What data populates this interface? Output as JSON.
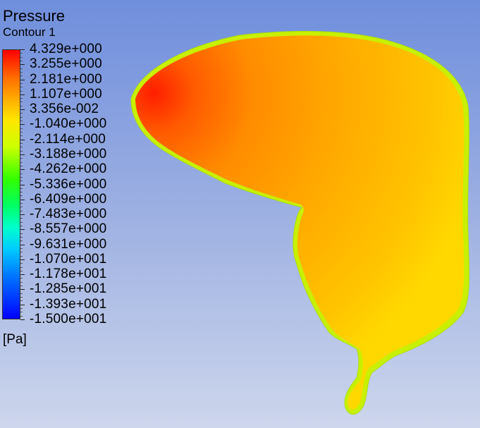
{
  "chart_data": {
    "type": "heatmap",
    "title": "Pressure",
    "subtitle": "Contour 1",
    "units": "[Pa]",
    "colorbar": {
      "min": -15.0,
      "max": 4.329,
      "labels": [
        "4.329e+000",
        "3.255e+000",
        "2.181e+000",
        "1.107e+000",
        "3.356e-002",
        "-1.040e+000",
        "-2.114e+000",
        "-3.188e+000",
        "-4.262e+000",
        "-5.336e+000",
        "-6.409e+000",
        "-7.483e+000",
        "-8.557e+000",
        "-9.631e+000",
        "-1.070e+001",
        "-1.178e+001",
        "-1.285e+001",
        "-1.393e+001",
        "-1.500e+001"
      ],
      "colors": {
        "max": "#ff0000",
        "high": "#ff8800",
        "mid": "#ffff00",
        "low_mid": "#00ff00",
        "low": "#00ffff",
        "min": "#0000ff"
      }
    }
  }
}
